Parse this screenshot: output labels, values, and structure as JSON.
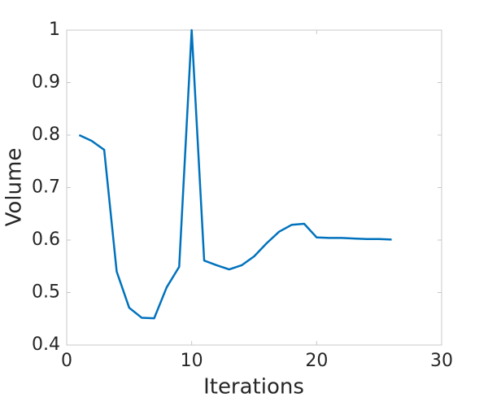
{
  "chart_data": {
    "type": "line",
    "x_label": "Iterations",
    "y_label": "Volume",
    "x": [
      1,
      2,
      3,
      4,
      5,
      6,
      7,
      8,
      9,
      10,
      11,
      12,
      13,
      14,
      15,
      16,
      17,
      18,
      19,
      20,
      21,
      22,
      23,
      24,
      25,
      26
    ],
    "series": [
      {
        "color": "#0072bd",
        "values": [
          0.8,
          0.789,
          0.772,
          0.54,
          0.471,
          0.452,
          0.451,
          0.51,
          0.549,
          1.0,
          0.561,
          0.552,
          0.544,
          0.552,
          0.569,
          0.594,
          0.616,
          0.629,
          0.631,
          0.605,
          0.604,
          0.604,
          0.603,
          0.602,
          0.602,
          0.601
        ]
      }
    ],
    "xlim": [
      0,
      30
    ],
    "xticks": [
      0,
      10,
      20,
      30
    ],
    "ylim": [
      0.4,
      1
    ],
    "yticks": [
      0.4,
      0.5,
      0.6,
      0.7,
      0.8,
      0.9,
      1
    ],
    "grid": false
  }
}
